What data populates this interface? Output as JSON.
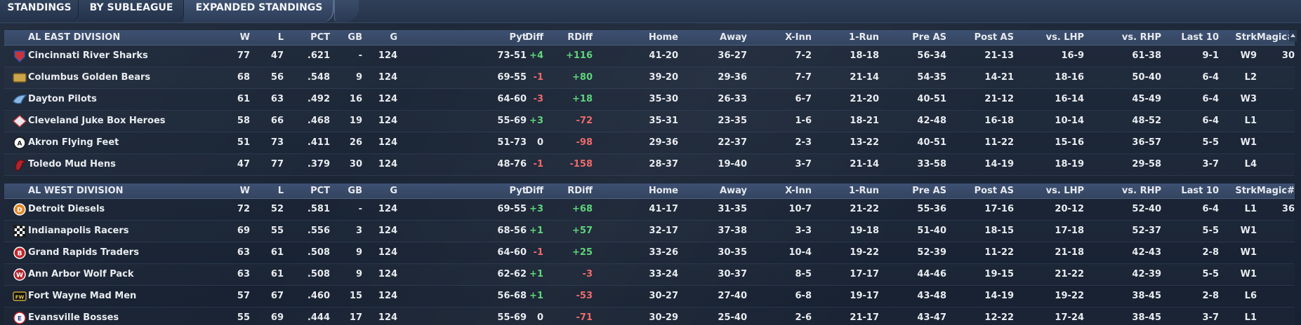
{
  "tabs": [
    {
      "label": "STANDINGS",
      "active": false
    },
    {
      "label": "BY SUBLEAGUE",
      "active": false
    },
    {
      "label": "EXPANDED STANDINGS",
      "active": true
    }
  ],
  "columns": [
    "W",
    "L",
    "PCT",
    "GB",
    "G",
    "Pyt",
    "Diff",
    "RDiff",
    "Home",
    "Away",
    "X-Inn",
    "1-Run",
    "Pre AS",
    "Post AS",
    "vs. LHP",
    "vs. RHP",
    "Last 10",
    "Strk",
    "Magic#"
  ],
  "colors": {
    "positive": "#5fd47c",
    "negative": "#ee6b6b",
    "header_bg": "#3e5072"
  },
  "divisions": [
    {
      "name": "AL EAST DIVISION",
      "teams": [
        {
          "name": "Cincinnati River Sharks",
          "logo": "river-sharks-logo",
          "W": "77",
          "L": "47",
          "PCT": ".621",
          "GB": "-",
          "G": "124",
          "Pyt": "73-51",
          "Diff": "+4",
          "RDiff": "+116",
          "Home": "41-20",
          "Away": "36-27",
          "XInn": "7-2",
          "OneRun": "18-18",
          "PreAS": "56-34",
          "PostAS": "21-13",
          "LHP": "16-9",
          "RHP": "61-38",
          "Last10": "9-1",
          "Strk": "W9",
          "Magic": "30"
        },
        {
          "name": "Columbus Golden Bears",
          "logo": "golden-bears-logo",
          "W": "68",
          "L": "56",
          "PCT": ".548",
          "GB": "9",
          "G": "124",
          "Pyt": "69-55",
          "Diff": "-1",
          "RDiff": "+80",
          "Home": "39-20",
          "Away": "29-36",
          "XInn": "7-7",
          "OneRun": "21-14",
          "PreAS": "54-35",
          "PostAS": "14-21",
          "LHP": "18-16",
          "RHP": "50-40",
          "Last10": "6-4",
          "Strk": "L2",
          "Magic": ""
        },
        {
          "name": "Dayton Pilots",
          "logo": "pilots-logo",
          "W": "61",
          "L": "63",
          "PCT": ".492",
          "GB": "16",
          "G": "124",
          "Pyt": "64-60",
          "Diff": "-3",
          "RDiff": "+18",
          "Home": "35-30",
          "Away": "26-33",
          "XInn": "6-7",
          "OneRun": "21-20",
          "PreAS": "40-51",
          "PostAS": "21-12",
          "LHP": "16-14",
          "RHP": "45-49",
          "Last10": "6-4",
          "Strk": "W3",
          "Magic": ""
        },
        {
          "name": "Cleveland Juke Box Heroes",
          "logo": "juke-box-heroes-logo",
          "W": "58",
          "L": "66",
          "PCT": ".468",
          "GB": "19",
          "G": "124",
          "Pyt": "55-69",
          "Diff": "+3",
          "RDiff": "-72",
          "Home": "35-31",
          "Away": "23-35",
          "XInn": "1-6",
          "OneRun": "18-21",
          "PreAS": "42-48",
          "PostAS": "16-18",
          "LHP": "10-14",
          "RHP": "48-52",
          "Last10": "6-4",
          "Strk": "L1",
          "Magic": ""
        },
        {
          "name": "Akron  Flying Feet",
          "logo": "flying-feet-logo",
          "W": "51",
          "L": "73",
          "PCT": ".411",
          "GB": "26",
          "G": "124",
          "Pyt": "51-73",
          "Diff": "0",
          "RDiff": "-98",
          "Home": "29-36",
          "Away": "22-37",
          "XInn": "2-3",
          "OneRun": "13-22",
          "PreAS": "40-51",
          "PostAS": "11-22",
          "LHP": "15-16",
          "RHP": "36-57",
          "Last10": "5-5",
          "Strk": "W1",
          "Magic": ""
        },
        {
          "name": "Toledo  Mud Hens",
          "logo": "mud-hens-logo",
          "W": "47",
          "L": "77",
          "PCT": ".379",
          "GB": "30",
          "G": "124",
          "Pyt": "48-76",
          "Diff": "-1",
          "RDiff": "-158",
          "Home": "28-37",
          "Away": "19-40",
          "XInn": "3-7",
          "OneRun": "21-14",
          "PreAS": "33-58",
          "PostAS": "14-19",
          "LHP": "18-19",
          "RHP": "29-58",
          "Last10": "3-7",
          "Strk": "L4",
          "Magic": ""
        }
      ]
    },
    {
      "name": "AL WEST DIVISION",
      "teams": [
        {
          "name": "Detroit Diesels",
          "logo": "diesels-logo",
          "W": "72",
          "L": "52",
          "PCT": ".581",
          "GB": "-",
          "G": "124",
          "Pyt": "69-55",
          "Diff": "+3",
          "RDiff": "+68",
          "Home": "41-17",
          "Away": "31-35",
          "XInn": "10-7",
          "OneRun": "21-22",
          "PreAS": "55-36",
          "PostAS": "17-16",
          "LHP": "20-12",
          "RHP": "52-40",
          "Last10": "6-4",
          "Strk": "L1",
          "Magic": "36"
        },
        {
          "name": "Indianapolis Racers",
          "logo": "racers-logo",
          "W": "69",
          "L": "55",
          "PCT": ".556",
          "GB": "3",
          "G": "124",
          "Pyt": "68-56",
          "Diff": "+1",
          "RDiff": "+57",
          "Home": "32-17",
          "Away": "37-38",
          "XInn": "3-3",
          "OneRun": "19-18",
          "PreAS": "51-40",
          "PostAS": "18-15",
          "LHP": "17-18",
          "RHP": "52-37",
          "Last10": "5-5",
          "Strk": "W1",
          "Magic": ""
        },
        {
          "name": "Grand Rapids Traders",
          "logo": "traders-logo",
          "W": "63",
          "L": "61",
          "PCT": ".508",
          "GB": "9",
          "G": "124",
          "Pyt": "64-60",
          "Diff": "-1",
          "RDiff": "+25",
          "Home": "33-26",
          "Away": "30-35",
          "XInn": "10-4",
          "OneRun": "19-22",
          "PreAS": "52-39",
          "PostAS": "11-22",
          "LHP": "21-18",
          "RHP": "42-43",
          "Last10": "2-8",
          "Strk": "W1",
          "Magic": ""
        },
        {
          "name": "Ann Arbor Wolf Pack",
          "logo": "wolf-pack-logo",
          "W": "63",
          "L": "61",
          "PCT": ".508",
          "GB": "9",
          "G": "124",
          "Pyt": "62-62",
          "Diff": "+1",
          "RDiff": "-3",
          "Home": "33-24",
          "Away": "30-37",
          "XInn": "8-5",
          "OneRun": "17-17",
          "PreAS": "44-46",
          "PostAS": "19-15",
          "LHP": "21-22",
          "RHP": "42-39",
          "Last10": "5-5",
          "Strk": "W1",
          "Magic": ""
        },
        {
          "name": "Fort Wayne Mad Men",
          "logo": "mad-men-logo",
          "W": "57",
          "L": "67",
          "PCT": ".460",
          "GB": "15",
          "G": "124",
          "Pyt": "56-68",
          "Diff": "+1",
          "RDiff": "-53",
          "Home": "30-27",
          "Away": "27-40",
          "XInn": "6-8",
          "OneRun": "19-17",
          "PreAS": "43-48",
          "PostAS": "14-19",
          "LHP": "19-22",
          "RHP": "38-45",
          "Last10": "2-8",
          "Strk": "L6",
          "Magic": ""
        },
        {
          "name": "Evansville Bosses",
          "logo": "bosses-logo",
          "W": "55",
          "L": "69",
          "PCT": ".444",
          "GB": "17",
          "G": "124",
          "Pyt": "55-69",
          "Diff": "0",
          "RDiff": "-71",
          "Home": "30-29",
          "Away": "25-40",
          "XInn": "2-6",
          "OneRun": "21-17",
          "PreAS": "43-47",
          "PostAS": "12-22",
          "LHP": "17-24",
          "RHP": "38-45",
          "Last10": "3-7",
          "Strk": "L1",
          "Magic": ""
        }
      ]
    }
  ]
}
